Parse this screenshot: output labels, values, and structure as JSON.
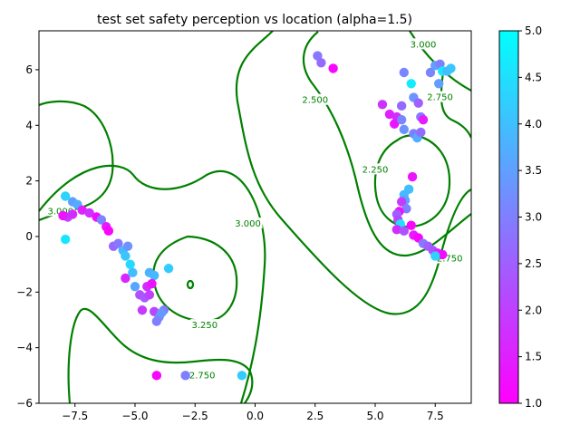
{
  "chart_data": {
    "type": "scatter",
    "title": "test set safety perception vs location (alpha=1.5)",
    "xlabel": "",
    "ylabel": "",
    "xlim": [
      -9.0,
      9.0
    ],
    "ylim": [
      -6.0,
      7.4
    ],
    "xticks": [
      "−7.5",
      "−5.0",
      "−2.5",
      "0.0",
      "2.5",
      "5.0",
      "7.5"
    ],
    "xtick_values": [
      -7.5,
      -5.0,
      -2.5,
      0.0,
      2.5,
      5.0,
      7.5
    ],
    "yticks": [
      "−6",
      "−4",
      "−2",
      "0",
      "2",
      "4",
      "6"
    ],
    "ytick_values": [
      -6,
      -4,
      -2,
      0,
      2,
      4,
      6
    ],
    "grid": false,
    "colorbar": {
      "colormap": "cool",
      "min": 1.0,
      "max": 5.0,
      "ticks": [
        "1.0",
        "1.5",
        "2.0",
        "2.5",
        "3.0",
        "3.5",
        "4.0",
        "4.5",
        "5.0"
      ],
      "tick_values": [
        1.0,
        1.5,
        2.0,
        2.5,
        3.0,
        3.5,
        4.0,
        4.5,
        5.0
      ]
    },
    "contour_color": "#008000",
    "contour_labels": [
      {
        "text": "3.000",
        "x": -8.1,
        "y": 0.9
      },
      {
        "text": "3.000",
        "x": -0.3,
        "y": 0.45
      },
      {
        "text": "3.000",
        "x": 7.0,
        "y": 6.9
      },
      {
        "text": "2.500",
        "x": 2.5,
        "y": 4.9
      },
      {
        "text": "2.250",
        "x": 5.0,
        "y": 2.4
      },
      {
        "text": "2.750",
        "x": 7.7,
        "y": 5.0
      },
      {
        "text": "2.750",
        "x": 8.1,
        "y": -0.8
      },
      {
        "text": "3.250",
        "x": -2.1,
        "y": -3.2
      },
      {
        "text": "2.750",
        "x": -2.2,
        "y": -5.0
      }
    ],
    "points": [
      {
        "x": -7.9,
        "y": 1.45,
        "v": 4.3
      },
      {
        "x": -7.6,
        "y": 1.25,
        "v": 3.5
      },
      {
        "x": -7.4,
        "y": 1.15,
        "v": 3.7
      },
      {
        "x": -7.8,
        "y": 0.7,
        "v": 2.0
      },
      {
        "x": -8.0,
        "y": 0.75,
        "v": 1.3
      },
      {
        "x": -7.6,
        "y": 0.8,
        "v": 1.7
      },
      {
        "x": -7.9,
        "y": -0.1,
        "v": 4.6
      },
      {
        "x": -7.2,
        "y": 0.95,
        "v": 1.5
      },
      {
        "x": -6.9,
        "y": 0.85,
        "v": 1.8
      },
      {
        "x": -6.6,
        "y": 0.7,
        "v": 1.2
      },
      {
        "x": -6.4,
        "y": 0.6,
        "v": 3.1
      },
      {
        "x": -6.2,
        "y": 0.35,
        "v": 1.4
      },
      {
        "x": -6.1,
        "y": 0.2,
        "v": 1.1
      },
      {
        "x": -5.9,
        "y": -0.35,
        "v": 2.6
      },
      {
        "x": -5.7,
        "y": -0.25,
        "v": 2.9
      },
      {
        "x": -5.5,
        "y": -0.5,
        "v": 3.9
      },
      {
        "x": -5.3,
        "y": -0.35,
        "v": 3.3
      },
      {
        "x": -5.4,
        "y": -0.7,
        "v": 4.1
      },
      {
        "x": -5.2,
        "y": -1.0,
        "v": 4.4
      },
      {
        "x": -5.4,
        "y": -1.5,
        "v": 1.6
      },
      {
        "x": -5.1,
        "y": -1.3,
        "v": 4.0
      },
      {
        "x": -5.0,
        "y": -1.8,
        "v": 3.6
      },
      {
        "x": -4.8,
        "y": -2.1,
        "v": 2.2
      },
      {
        "x": -4.6,
        "y": -2.2,
        "v": 2.4
      },
      {
        "x": -4.4,
        "y": -2.1,
        "v": 2.0
      },
      {
        "x": -4.5,
        "y": -1.8,
        "v": 1.7
      },
      {
        "x": -4.4,
        "y": -1.3,
        "v": 3.8
      },
      {
        "x": -4.2,
        "y": -1.4,
        "v": 3.9
      },
      {
        "x": -4.3,
        "y": -1.7,
        "v": 1.3
      },
      {
        "x": -4.7,
        "y": -2.65,
        "v": 1.9
      },
      {
        "x": -4.2,
        "y": -2.7,
        "v": 2.1
      },
      {
        "x": -4.0,
        "y": -2.9,
        "v": 3.2
      },
      {
        "x": -3.8,
        "y": -2.65,
        "v": 2.9
      },
      {
        "x": -3.9,
        "y": -2.75,
        "v": 3.4
      },
      {
        "x": -4.1,
        "y": -3.05,
        "v": 3.0
      },
      {
        "x": -3.6,
        "y": -1.15,
        "v": 4.2
      },
      {
        "x": -4.1,
        "y": -5.0,
        "v": 1.1
      },
      {
        "x": -2.9,
        "y": -5.0,
        "v": 3.0
      },
      {
        "x": -0.55,
        "y": -5.0,
        "v": 4.2
      },
      {
        "x": 2.6,
        "y": 6.5,
        "v": 2.9
      },
      {
        "x": 2.75,
        "y": 6.25,
        "v": 2.7
      },
      {
        "x": 3.25,
        "y": 6.05,
        "v": 1.1
      },
      {
        "x": 5.3,
        "y": 4.75,
        "v": 1.8
      },
      {
        "x": 5.6,
        "y": 4.4,
        "v": 1.5
      },
      {
        "x": 5.9,
        "y": 4.3,
        "v": 1.7
      },
      {
        "x": 5.8,
        "y": 4.05,
        "v": 1.3
      },
      {
        "x": 6.1,
        "y": 4.7,
        "v": 2.7
      },
      {
        "x": 6.1,
        "y": 4.2,
        "v": 3.1
      },
      {
        "x": 6.5,
        "y": 5.5,
        "v": 4.7
      },
      {
        "x": 6.2,
        "y": 5.9,
        "v": 3.1
      },
      {
        "x": 6.6,
        "y": 5.0,
        "v": 3.3
      },
      {
        "x": 6.8,
        "y": 4.8,
        "v": 2.5
      },
      {
        "x": 6.9,
        "y": 4.3,
        "v": 2.9
      },
      {
        "x": 7.0,
        "y": 4.2,
        "v": 1.4
      },
      {
        "x": 7.3,
        "y": 5.9,
        "v": 3.1
      },
      {
        "x": 7.5,
        "y": 6.15,
        "v": 3.5
      },
      {
        "x": 7.7,
        "y": 6.2,
        "v": 3.0
      },
      {
        "x": 7.8,
        "y": 5.95,
        "v": 4.6
      },
      {
        "x": 7.65,
        "y": 5.5,
        "v": 3.5
      },
      {
        "x": 8.0,
        "y": 5.95,
        "v": 3.9
      },
      {
        "x": 8.15,
        "y": 6.05,
        "v": 4.1
      },
      {
        "x": 6.2,
        "y": 3.85,
        "v": 3.3
      },
      {
        "x": 6.6,
        "y": 3.7,
        "v": 3.0
      },
      {
        "x": 6.75,
        "y": 3.55,
        "v": 3.7
      },
      {
        "x": 6.9,
        "y": 3.75,
        "v": 2.7
      },
      {
        "x": 6.55,
        "y": 2.15,
        "v": 1.3
      },
      {
        "x": 6.4,
        "y": 1.7,
        "v": 4.0
      },
      {
        "x": 6.2,
        "y": 1.5,
        "v": 3.9
      },
      {
        "x": 6.25,
        "y": 1.3,
        "v": 3.6
      },
      {
        "x": 6.1,
        "y": 1.25,
        "v": 1.9
      },
      {
        "x": 6.3,
        "y": 1.0,
        "v": 3.0
      },
      {
        "x": 6.0,
        "y": 0.9,
        "v": 1.2
      },
      {
        "x": 5.9,
        "y": 0.8,
        "v": 2.5
      },
      {
        "x": 5.95,
        "y": 0.6,
        "v": 2.1
      },
      {
        "x": 6.05,
        "y": 0.45,
        "v": 4.5
      },
      {
        "x": 5.9,
        "y": 0.25,
        "v": 1.7
      },
      {
        "x": 6.2,
        "y": 0.2,
        "v": 2.3
      },
      {
        "x": 6.5,
        "y": 0.4,
        "v": 1.1
      },
      {
        "x": 6.6,
        "y": 0.05,
        "v": 1.4
      },
      {
        "x": 6.8,
        "y": -0.05,
        "v": 1.1
      },
      {
        "x": 7.0,
        "y": -0.25,
        "v": 2.9
      },
      {
        "x": 7.2,
        "y": -0.35,
        "v": 2.5
      },
      {
        "x": 7.4,
        "y": -0.5,
        "v": 2.3
      },
      {
        "x": 7.6,
        "y": -0.6,
        "v": 1.5
      },
      {
        "x": 7.8,
        "y": -0.65,
        "v": 1.2
      },
      {
        "x": 7.5,
        "y": -0.7,
        "v": 4.3
      }
    ]
  }
}
